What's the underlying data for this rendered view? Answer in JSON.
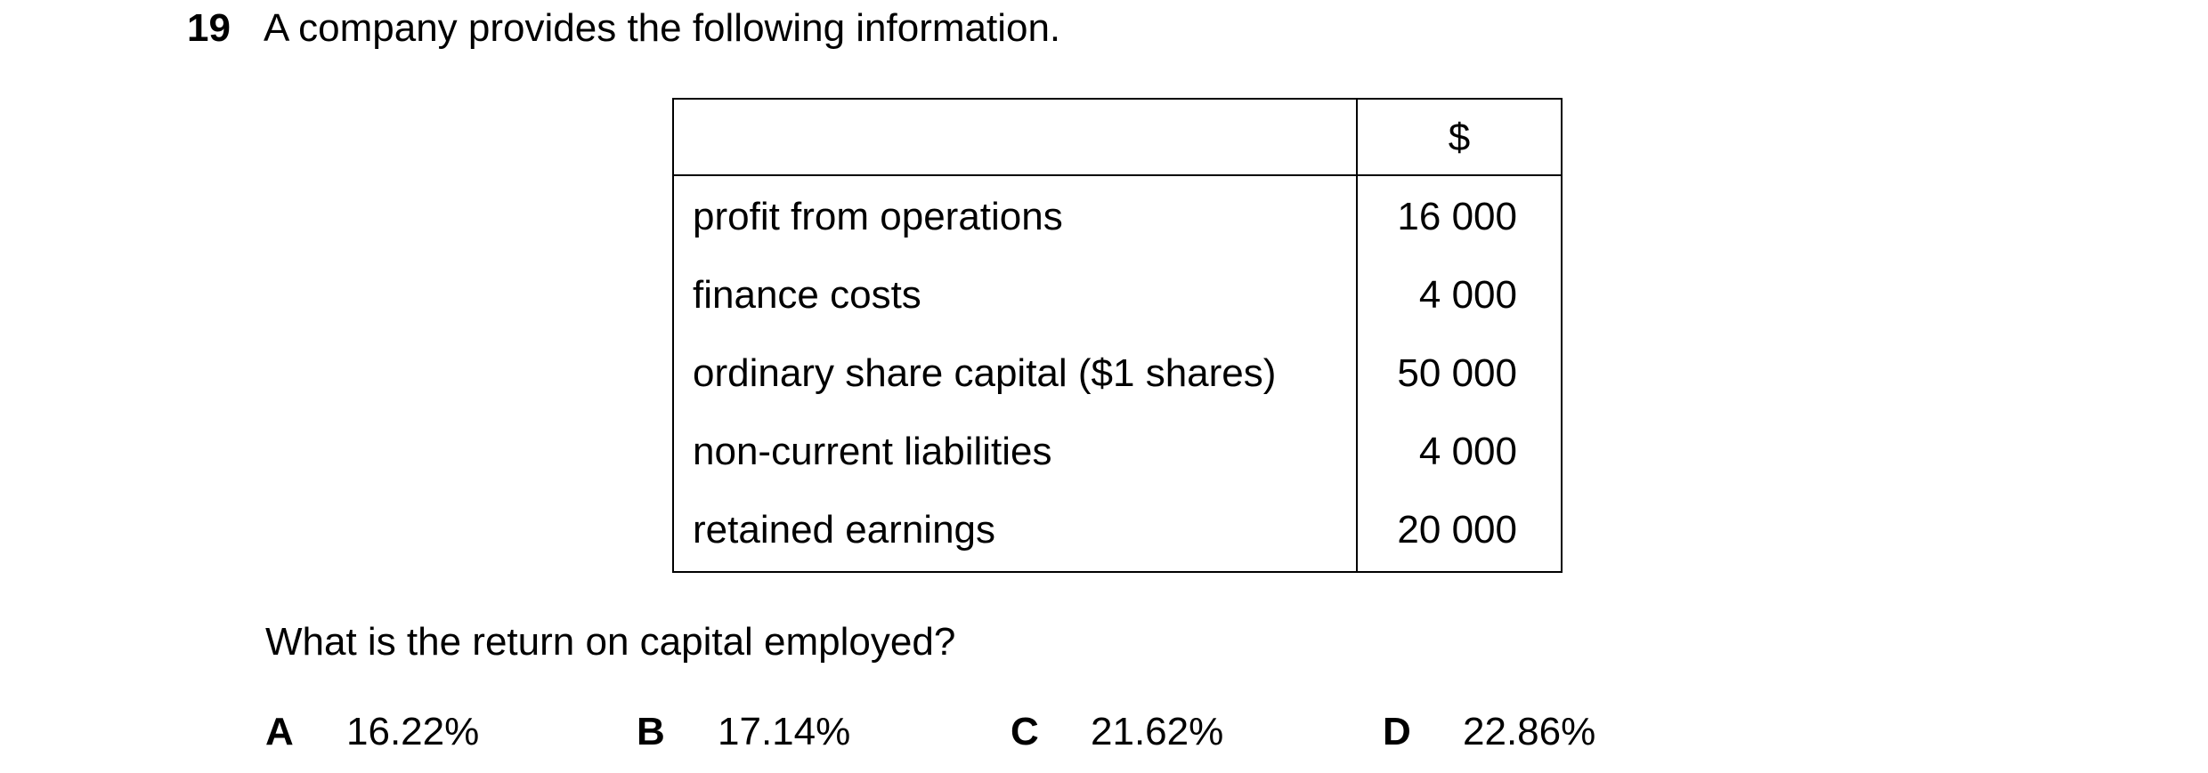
{
  "question": {
    "number": "19",
    "intro": "A company provides the following information.",
    "prompt": "What is the return on capital employed?"
  },
  "table": {
    "currency_header": "$",
    "rows": [
      {
        "label": "profit from operations",
        "value": "16 000"
      },
      {
        "label": "finance costs",
        "value": "4 000"
      },
      {
        "label": "ordinary share capital ($1 shares)",
        "value": "50 000"
      },
      {
        "label": "non-current liabilities",
        "value": "4 000"
      },
      {
        "label": "retained earnings",
        "value": "20 000"
      }
    ]
  },
  "options": [
    {
      "letter": "A",
      "value": "16.22%"
    },
    {
      "letter": "B",
      "value": "17.14%"
    },
    {
      "letter": "C",
      "value": "21.62%"
    },
    {
      "letter": "D",
      "value": "22.86%"
    }
  ]
}
